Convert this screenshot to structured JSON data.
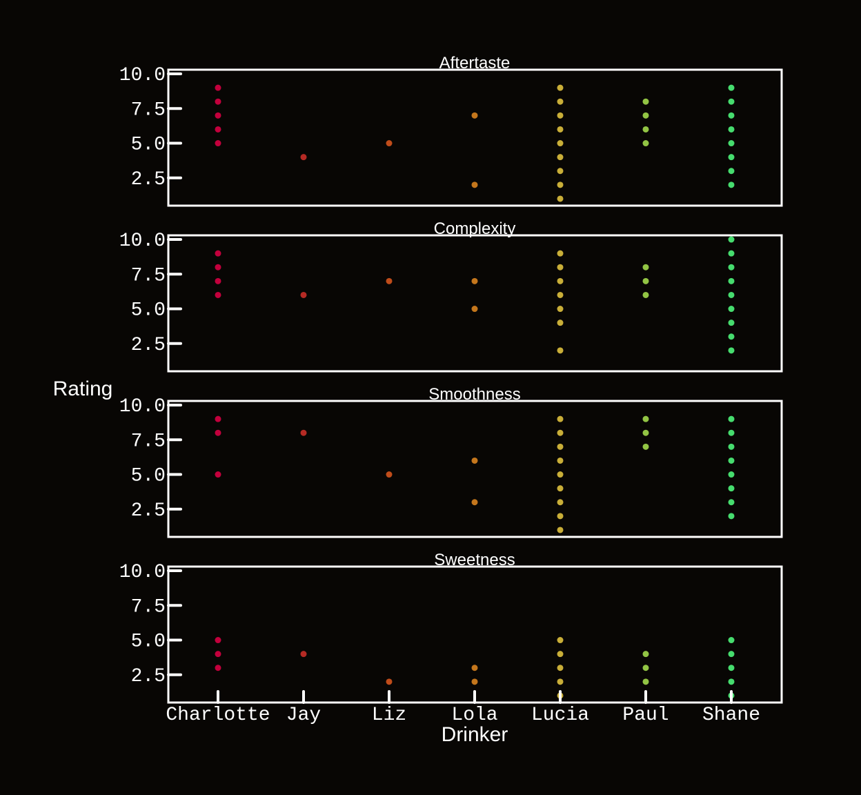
{
  "chart_data": {
    "type": "scatter",
    "layout": "facet-rows",
    "xlabel": "Drinker",
    "ylabel": "Rating",
    "categories": [
      "Charlotte",
      "Jay",
      "Liz",
      "Lola",
      "Lucia",
      "Paul",
      "Shane"
    ],
    "category_colors": {
      "Charlotte": "#c2003c",
      "Jay": "#b52a24",
      "Liz": "#c04c1a",
      "Lola": "#c4761c",
      "Lucia": "#c9ae38",
      "Paul": "#92c444",
      "Shane": "#46dc6e"
    },
    "ylim": [
      0.5,
      10.3
    ],
    "yticks": [
      "10.0",
      "7.5",
      "5.0",
      "2.5"
    ],
    "ytick_values": [
      10.0,
      7.5,
      5.0,
      2.5
    ],
    "grid": false,
    "legend": "none",
    "panels": [
      {
        "title": "Aftertaste",
        "points": {
          "Charlotte": [
            9,
            8,
            7,
            6,
            5
          ],
          "Jay": [
            4
          ],
          "Liz": [
            5
          ],
          "Lola": [
            7,
            2
          ],
          "Lucia": [
            9,
            8,
            7,
            6,
            5,
            4,
            3,
            2,
            1
          ],
          "Paul": [
            8,
            7,
            6,
            5
          ],
          "Shane": [
            9,
            8,
            7,
            6,
            5,
            4,
            3,
            2
          ]
        }
      },
      {
        "title": "Complexity",
        "points": {
          "Charlotte": [
            9,
            8,
            7,
            6
          ],
          "Jay": [
            6
          ],
          "Liz": [
            7
          ],
          "Lola": [
            7,
            5
          ],
          "Lucia": [
            9,
            8,
            7,
            6,
            5,
            4,
            2
          ],
          "Paul": [
            8,
            7,
            6
          ],
          "Shane": [
            10,
            9,
            8,
            7,
            6,
            5,
            4,
            3,
            2
          ]
        }
      },
      {
        "title": "Smoothness",
        "points": {
          "Charlotte": [
            9,
            8,
            5
          ],
          "Jay": [
            8
          ],
          "Liz": [
            5
          ],
          "Lola": [
            6,
            3
          ],
          "Lucia": [
            9,
            8,
            7,
            6,
            5,
            4,
            3,
            2,
            1
          ],
          "Paul": [
            9,
            8,
            7
          ],
          "Shane": [
            9,
            8,
            7,
            6,
            5,
            4,
            3,
            2
          ]
        }
      },
      {
        "title": "Sweetness",
        "points": {
          "Charlotte": [
            5,
            4,
            3
          ],
          "Jay": [
            4
          ],
          "Liz": [
            2
          ],
          "Lola": [
            3,
            2
          ],
          "Lucia": [
            5,
            4,
            3,
            2,
            1
          ],
          "Paul": [
            4,
            3,
            2
          ],
          "Shane": [
            5,
            4,
            3,
            2,
            1
          ]
        }
      }
    ]
  },
  "colors": {
    "background": "#080604",
    "axes": "#ffffff",
    "text": "#ffffff"
  }
}
